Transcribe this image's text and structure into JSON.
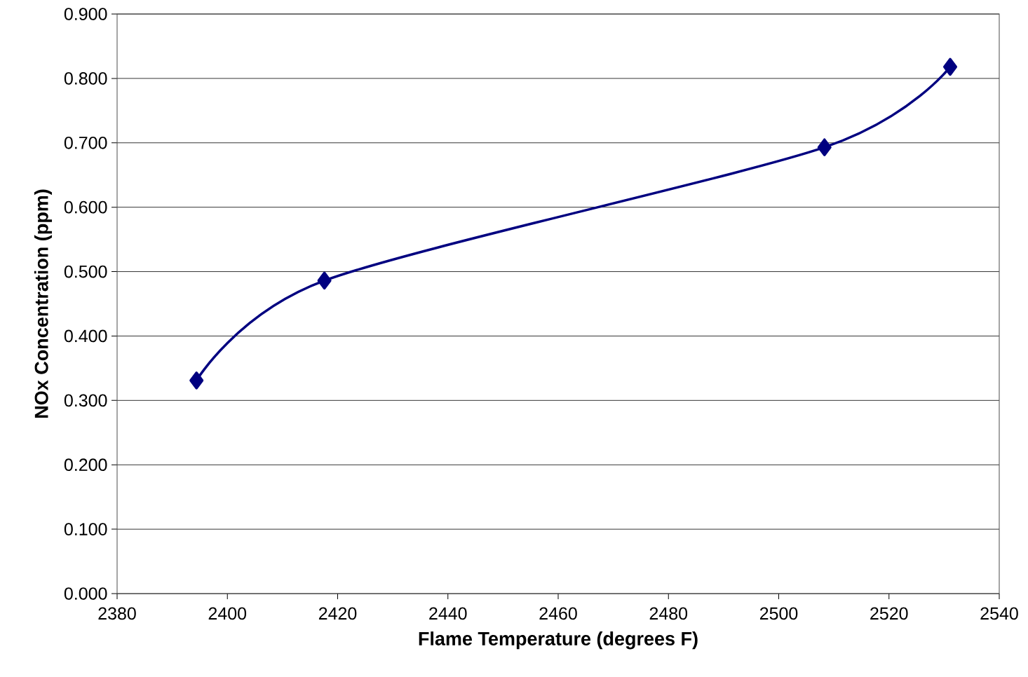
{
  "chart_data": {
    "type": "line",
    "xlabel": "Flame Temperature (degrees F)",
    "ylabel": "NOx Concentration (ppm)",
    "series": [
      {
        "color": "#000080",
        "x": [
          2394.4,
          2417.6,
          2508.3,
          2531.1
        ],
        "values": [
          0.331,
          0.486,
          0.693,
          0.818
        ]
      }
    ],
    "xlim": [
      2380,
      2540
    ],
    "xticks": [
      2380,
      2400,
      2420,
      2440,
      2460,
      2480,
      2500,
      2520,
      2540
    ],
    "ylim": [
      0,
      0.9
    ],
    "yticks": [
      {
        "value": 0,
        "label": "0.000"
      },
      {
        "value": 0.1,
        "label": "0.100"
      },
      {
        "value": 0.2,
        "label": "0.200"
      },
      {
        "value": 0.3,
        "label": "0.300"
      },
      {
        "value": 0.4,
        "label": "0.400"
      },
      {
        "value": 0.5,
        "label": "0.500"
      },
      {
        "value": 0.6,
        "label": "0.600"
      },
      {
        "value": 0.7,
        "label": "0.700"
      },
      {
        "value": 0.8,
        "label": "0.800"
      },
      {
        "value": 0.9,
        "label": "0.900"
      }
    ],
    "grid": "y",
    "marker": "diamond"
  }
}
